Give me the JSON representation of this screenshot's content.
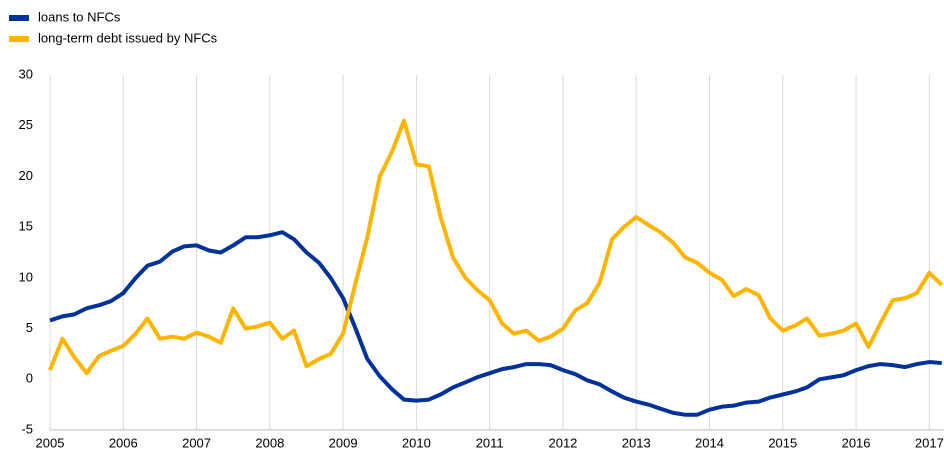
{
  "chart_data": {
    "type": "line",
    "x": [
      2005,
      2005.17,
      2005.33,
      2005.5,
      2005.67,
      2005.83,
      2006,
      2006.17,
      2006.33,
      2006.5,
      2006.67,
      2006.83,
      2007,
      2007.17,
      2007.33,
      2007.5,
      2007.67,
      2007.83,
      2008,
      2008.17,
      2008.33,
      2008.5,
      2008.67,
      2008.83,
      2009,
      2009.17,
      2009.33,
      2009.5,
      2009.67,
      2009.83,
      2010,
      2010.17,
      2010.33,
      2010.5,
      2010.67,
      2010.83,
      2011,
      2011.17,
      2011.33,
      2011.5,
      2011.67,
      2011.83,
      2012,
      2012.17,
      2012.33,
      2012.5,
      2012.67,
      2012.83,
      2013,
      2013.17,
      2013.33,
      2013.5,
      2013.67,
      2013.83,
      2014,
      2014.17,
      2014.33,
      2014.5,
      2014.67,
      2014.83,
      2015,
      2015.17,
      2015.33,
      2015.5,
      2015.67,
      2015.83,
      2016,
      2016.17,
      2016.33,
      2016.5,
      2016.67,
      2016.83,
      2017,
      2017.17
    ],
    "series": [
      {
        "name": "loans to NFCs",
        "color": "#003299",
        "values": [
          5.8,
          6.2,
          6.4,
          7.0,
          7.3,
          7.7,
          8.5,
          10.0,
          11.2,
          11.6,
          12.6,
          13.1,
          13.2,
          12.7,
          12.5,
          13.2,
          14.0,
          14.0,
          14.2,
          14.5,
          13.8,
          12.5,
          11.5,
          10.0,
          8.0,
          5.0,
          2.0,
          0.3,
          -1.0,
          -2.0,
          -2.1,
          -2.0,
          -1.5,
          -0.8,
          -0.3,
          0.2,
          0.6,
          1.0,
          1.2,
          1.5,
          1.5,
          1.4,
          0.9,
          0.5,
          -0.1,
          -0.5,
          -1.2,
          -1.8,
          -2.2,
          -2.5,
          -2.9,
          -3.3,
          -3.5,
          -3.5,
          -3.0,
          -2.7,
          -2.6,
          -2.3,
          -2.2,
          -1.8,
          -1.5,
          -1.2,
          -0.8,
          0.0,
          0.2,
          0.4,
          0.9,
          1.3,
          1.5,
          1.4,
          1.2,
          1.5,
          1.7,
          1.6
        ]
      },
      {
        "name": "long-term debt issued by NFCs",
        "color": "#ffb400",
        "values": [
          0.9,
          4.0,
          2.2,
          0.6,
          2.3,
          2.8,
          3.3,
          4.5,
          6.0,
          4.0,
          4.2,
          4.0,
          4.6,
          4.2,
          3.6,
          7.0,
          5.0,
          5.2,
          5.6,
          4.0,
          4.8,
          1.3,
          2.0,
          2.5,
          4.5,
          9.5,
          14.0,
          20.0,
          22.5,
          25.5,
          21.2,
          21.0,
          16.0,
          12.0,
          10.0,
          8.8,
          7.8,
          5.5,
          4.5,
          4.8,
          3.8,
          4.2,
          5.0,
          6.8,
          7.5,
          9.5,
          13.8,
          15.0,
          16.0,
          15.2,
          14.5,
          13.5,
          12.0,
          11.5,
          10.5,
          9.8,
          8.2,
          8.9,
          8.3,
          6.0,
          4.8,
          5.3,
          6.0,
          4.3,
          4.5,
          4.8,
          5.5,
          3.2,
          5.5,
          7.8,
          8.0,
          8.5,
          10.5,
          9.3
        ]
      }
    ],
    "xlim": [
      2005,
      2017.2
    ],
    "xticks": [
      2005,
      2006,
      2007,
      2008,
      2009,
      2010,
      2011,
      2012,
      2013,
      2014,
      2015,
      2016,
      2017
    ],
    "ylim": [
      -5,
      30
    ],
    "yticks": [
      -5,
      0,
      5,
      10,
      15,
      20,
      25,
      30
    ],
    "grid": true
  }
}
